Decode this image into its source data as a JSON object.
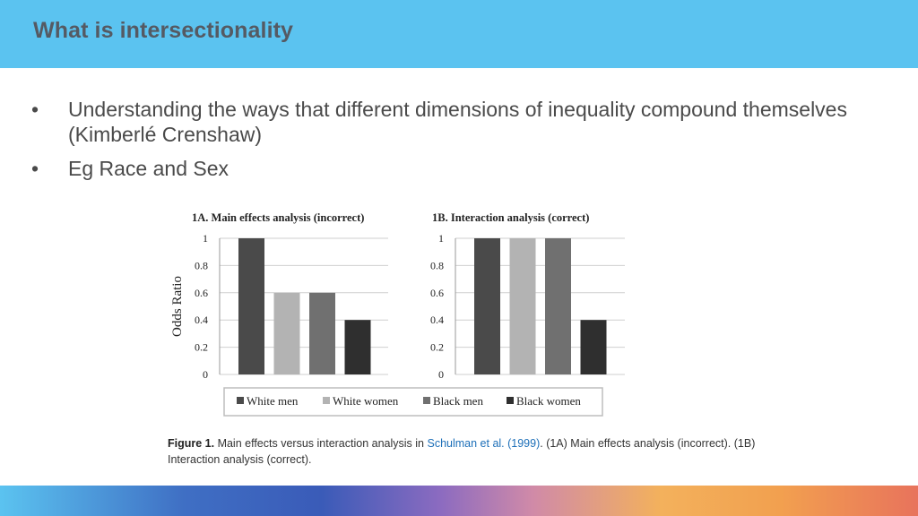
{
  "header": {
    "title": "What is intersectionality"
  },
  "bullets": [
    {
      "marker": "•",
      "text": "Understanding the ways that different dimensions of inequality compound themselves (Kimberlé Crenshaw)"
    },
    {
      "marker": "•",
      "text": "Eg Race and Sex"
    }
  ],
  "chart_data": [
    {
      "type": "bar",
      "title": "1A. Main effects analysis (incorrect)",
      "ylabel": "Odds Ratio",
      "ylim": [
        0,
        1
      ],
      "yticks": [
        "0",
        "0.2",
        "0.4",
        "0.6",
        "0.8",
        "1"
      ],
      "categories": [
        "White men",
        "White women",
        "Black men",
        "Black women"
      ],
      "values": [
        1,
        0.6,
        0.6,
        0.4
      ],
      "grid": true
    },
    {
      "type": "bar",
      "title": "1B. Interaction analysis (correct)",
      "ylabel": "",
      "ylim": [
        0,
        1
      ],
      "yticks": [
        "0",
        "0.2",
        "0.4",
        "0.6",
        "0.8",
        "1"
      ],
      "categories": [
        "White men",
        "White women",
        "Black men",
        "Black women"
      ],
      "values": [
        1,
        1,
        1,
        0.4
      ],
      "grid": true
    }
  ],
  "legend": {
    "placement": "bottom",
    "items": [
      "White men",
      "White women",
      "Black men",
      "Black women"
    ]
  },
  "colors": {
    "header_bg": "#5bc3f0",
    "series": [
      "#4a4a4a",
      "#b3b3b3",
      "#707070",
      "#2f2f2f"
    ]
  },
  "caption": {
    "label": "Figure 1.",
    "text_before": " Main effects versus interaction analysis in ",
    "citation": "Schulman et al. (1999)",
    "text_after": ". (1A) Main effects analysis (incorrect). (1B) Interaction analysis (correct)."
  }
}
